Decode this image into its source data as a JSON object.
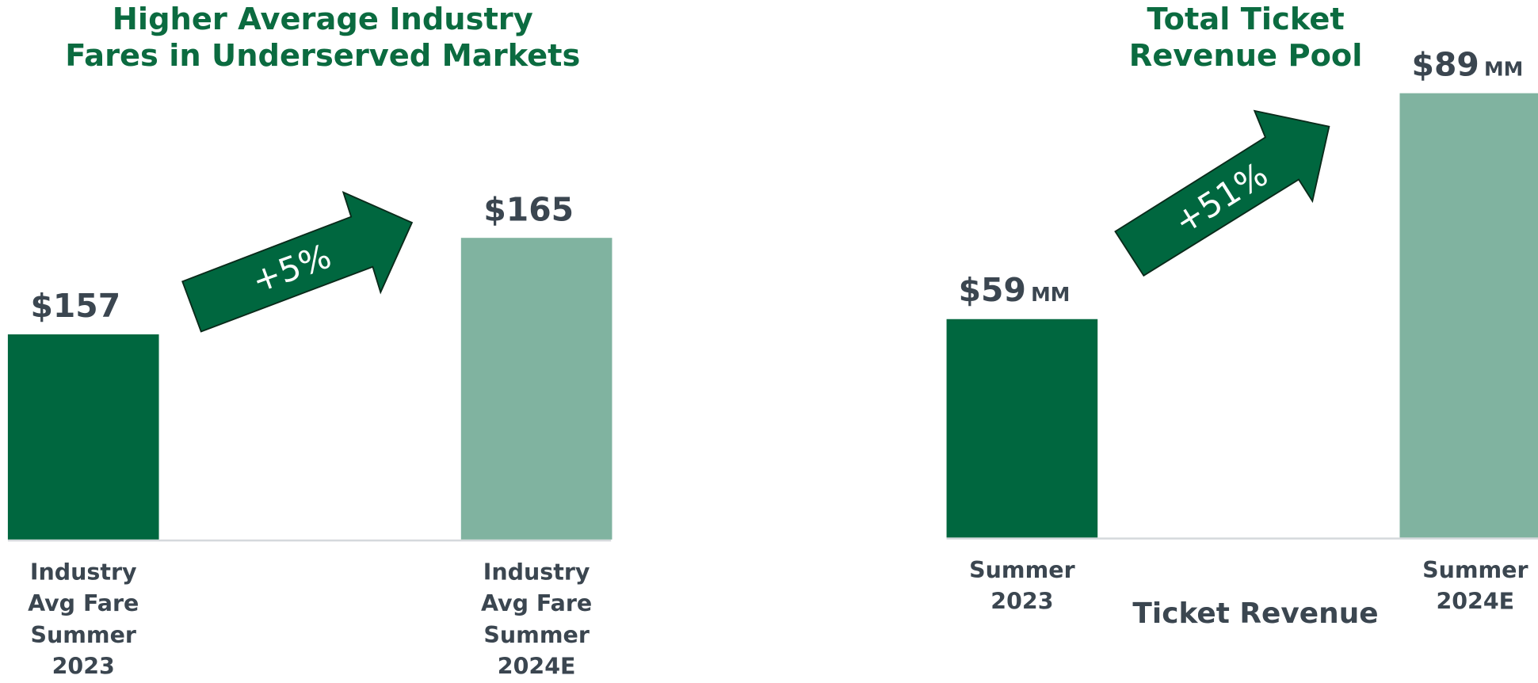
{
  "chart_data": [
    {
      "type": "bar",
      "title": "Higher Average Industry\nFares in Underserved Markets",
      "categories": [
        "Industry\nAvg Fare\nSummer\n2023",
        "Industry\nAvg Fare\nSummer\n2024E"
      ],
      "values": [
        157,
        165
      ],
      "value_labels": [
        "$157",
        "$165"
      ],
      "colors": [
        "#00673f",
        "#80b3a0"
      ],
      "ylim": [
        140,
        170
      ],
      "annotation": "+5%"
    },
    {
      "type": "bar",
      "title": "Total Ticket\nRevenue Pool",
      "categories": [
        "Summer\n2023",
        "Summer\n2024E"
      ],
      "values": [
        59,
        89
      ],
      "value_labels": [
        "$59",
        "$89"
      ],
      "unit": "MM",
      "xlabel": "Ticket Revenue",
      "colors": [
        "#00673f",
        "#80b3a0"
      ],
      "ylim": [
        30,
        92
      ],
      "annotation": "+51%"
    }
  ]
}
